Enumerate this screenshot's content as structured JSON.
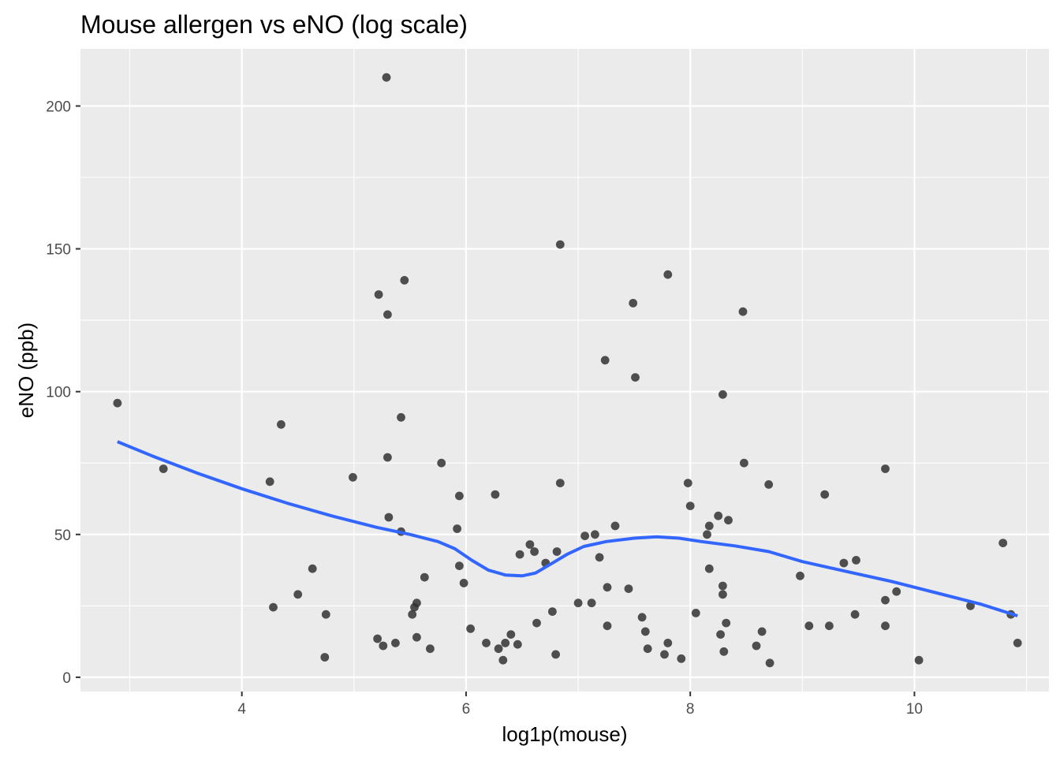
{
  "chart_data": {
    "type": "scatter",
    "title": "Mouse allergen vs eNO (log scale)",
    "xlabel": "log1p(mouse)",
    "ylabel": "eNO (ppb)",
    "xlim": [
      2.56,
      11.2
    ],
    "ylim": [
      -5,
      220
    ],
    "x_ticks": [
      4,
      6,
      8,
      10
    ],
    "x_minor_ticks": [
      3,
      5,
      7,
      9,
      11
    ],
    "y_ticks": [
      0,
      50,
      100,
      150,
      200
    ],
    "y_minor_ticks": [
      25,
      75,
      125,
      175
    ],
    "grid": true,
    "panel_color": "#EBEBEB",
    "point_color": "#333333",
    "smooth_color": "#3366FF",
    "points": [
      {
        "x": 2.89,
        "y": 96
      },
      {
        "x": 3.3,
        "y": 73
      },
      {
        "x": 4.25,
        "y": 68.5
      },
      {
        "x": 4.35,
        "y": 88.5
      },
      {
        "x": 4.28,
        "y": 24.5
      },
      {
        "x": 4.5,
        "y": 29
      },
      {
        "x": 4.63,
        "y": 38
      },
      {
        "x": 4.74,
        "y": 7
      },
      {
        "x": 4.75,
        "y": 22
      },
      {
        "x": 4.99,
        "y": 70
      },
      {
        "x": 5.22,
        "y": 134
      },
      {
        "x": 5.21,
        "y": 13.5
      },
      {
        "x": 5.26,
        "y": 11
      },
      {
        "x": 5.29,
        "y": 210
      },
      {
        "x": 5.3,
        "y": 127
      },
      {
        "x": 5.3,
        "y": 77
      },
      {
        "x": 5.31,
        "y": 56
      },
      {
        "x": 5.37,
        "y": 12
      },
      {
        "x": 5.42,
        "y": 91
      },
      {
        "x": 5.42,
        "y": 51
      },
      {
        "x": 5.45,
        "y": 139
      },
      {
        "x": 5.52,
        "y": 22
      },
      {
        "x": 5.54,
        "y": 24.5
      },
      {
        "x": 5.56,
        "y": 26
      },
      {
        "x": 5.56,
        "y": 14
      },
      {
        "x": 5.63,
        "y": 35
      },
      {
        "x": 5.68,
        "y": 10
      },
      {
        "x": 5.78,
        "y": 75
      },
      {
        "x": 5.92,
        "y": 52
      },
      {
        "x": 5.94,
        "y": 63.5
      },
      {
        "x": 5.94,
        "y": 39
      },
      {
        "x": 5.98,
        "y": 33
      },
      {
        "x": 6.04,
        "y": 17
      },
      {
        "x": 6.18,
        "y": 12
      },
      {
        "x": 6.26,
        "y": 64
      },
      {
        "x": 6.29,
        "y": 10
      },
      {
        "x": 6.33,
        "y": 6
      },
      {
        "x": 6.35,
        "y": 12
      },
      {
        "x": 6.4,
        "y": 15
      },
      {
        "x": 6.46,
        "y": 11.5
      },
      {
        "x": 6.48,
        "y": 43
      },
      {
        "x": 6.57,
        "y": 46.5
      },
      {
        "x": 6.61,
        "y": 44
      },
      {
        "x": 6.63,
        "y": 19
      },
      {
        "x": 6.71,
        "y": 40
      },
      {
        "x": 6.77,
        "y": 23
      },
      {
        "x": 6.8,
        "y": 8
      },
      {
        "x": 6.81,
        "y": 44
      },
      {
        "x": 6.84,
        "y": 151.5
      },
      {
        "x": 6.84,
        "y": 68
      },
      {
        "x": 7.0,
        "y": 26
      },
      {
        "x": 7.06,
        "y": 49.5
      },
      {
        "x": 7.12,
        "y": 26
      },
      {
        "x": 7.15,
        "y": 50
      },
      {
        "x": 7.19,
        "y": 42
      },
      {
        "x": 7.24,
        "y": 111
      },
      {
        "x": 7.26,
        "y": 31.5
      },
      {
        "x": 7.26,
        "y": 18
      },
      {
        "x": 7.33,
        "y": 53
      },
      {
        "x": 7.45,
        "y": 31
      },
      {
        "x": 7.49,
        "y": 131
      },
      {
        "x": 7.51,
        "y": 105
      },
      {
        "x": 7.57,
        "y": 21
      },
      {
        "x": 7.6,
        "y": 16
      },
      {
        "x": 7.62,
        "y": 10
      },
      {
        "x": 7.77,
        "y": 8
      },
      {
        "x": 7.8,
        "y": 141
      },
      {
        "x": 7.8,
        "y": 12
      },
      {
        "x": 7.92,
        "y": 6.5
      },
      {
        "x": 7.98,
        "y": 68
      },
      {
        "x": 8.0,
        "y": 60
      },
      {
        "x": 8.05,
        "y": 22.5
      },
      {
        "x": 8.15,
        "y": 50
      },
      {
        "x": 8.17,
        "y": 38
      },
      {
        "x": 8.17,
        "y": 53
      },
      {
        "x": 8.25,
        "y": 56.5
      },
      {
        "x": 8.27,
        "y": 15
      },
      {
        "x": 8.29,
        "y": 99
      },
      {
        "x": 8.29,
        "y": 32
      },
      {
        "x": 8.29,
        "y": 29
      },
      {
        "x": 8.3,
        "y": 9
      },
      {
        "x": 8.32,
        "y": 19
      },
      {
        "x": 8.34,
        "y": 55
      },
      {
        "x": 8.47,
        "y": 128
      },
      {
        "x": 8.48,
        "y": 75
      },
      {
        "x": 8.59,
        "y": 11
      },
      {
        "x": 8.64,
        "y": 16
      },
      {
        "x": 8.7,
        "y": 67.5
      },
      {
        "x": 8.71,
        "y": 5
      },
      {
        "x": 8.98,
        "y": 35.5
      },
      {
        "x": 9.06,
        "y": 18
      },
      {
        "x": 9.2,
        "y": 64
      },
      {
        "x": 9.24,
        "y": 18
      },
      {
        "x": 9.37,
        "y": 40
      },
      {
        "x": 9.47,
        "y": 22
      },
      {
        "x": 9.48,
        "y": 41
      },
      {
        "x": 9.74,
        "y": 73
      },
      {
        "x": 9.74,
        "y": 27
      },
      {
        "x": 9.74,
        "y": 18
      },
      {
        "x": 9.84,
        "y": 30
      },
      {
        "x": 10.04,
        "y": 6
      },
      {
        "x": 10.5,
        "y": 25
      },
      {
        "x": 10.79,
        "y": 47
      },
      {
        "x": 10.86,
        "y": 22
      },
      {
        "x": 10.92,
        "y": 12
      }
    ],
    "smooth_line": [
      {
        "x": 2.89,
        "y": 82.5
      },
      {
        "x": 3.2,
        "y": 77.5
      },
      {
        "x": 3.6,
        "y": 71.5
      },
      {
        "x": 4.0,
        "y": 66
      },
      {
        "x": 4.4,
        "y": 61
      },
      {
        "x": 4.8,
        "y": 56.5
      },
      {
        "x": 5.2,
        "y": 52.5
      },
      {
        "x": 5.5,
        "y": 50
      },
      {
        "x": 5.75,
        "y": 47.5
      },
      {
        "x": 5.9,
        "y": 45
      },
      {
        "x": 6.05,
        "y": 41
      },
      {
        "x": 6.2,
        "y": 37.5
      },
      {
        "x": 6.35,
        "y": 35.8
      },
      {
        "x": 6.5,
        "y": 35.5
      },
      {
        "x": 6.62,
        "y": 36.5
      },
      {
        "x": 6.75,
        "y": 39.5
      },
      {
        "x": 6.9,
        "y": 43
      },
      {
        "x": 7.05,
        "y": 45.8
      },
      {
        "x": 7.25,
        "y": 47.5
      },
      {
        "x": 7.5,
        "y": 48.7
      },
      {
        "x": 7.7,
        "y": 49.2
      },
      {
        "x": 7.9,
        "y": 48.7
      },
      {
        "x": 8.1,
        "y": 47.5
      },
      {
        "x": 8.4,
        "y": 46
      },
      {
        "x": 8.7,
        "y": 44
      },
      {
        "x": 9.0,
        "y": 40.5
      },
      {
        "x": 9.4,
        "y": 37
      },
      {
        "x": 9.8,
        "y": 33.5
      },
      {
        "x": 10.2,
        "y": 29.5
      },
      {
        "x": 10.6,
        "y": 25.5
      },
      {
        "x": 10.92,
        "y": 21.5
      }
    ]
  }
}
